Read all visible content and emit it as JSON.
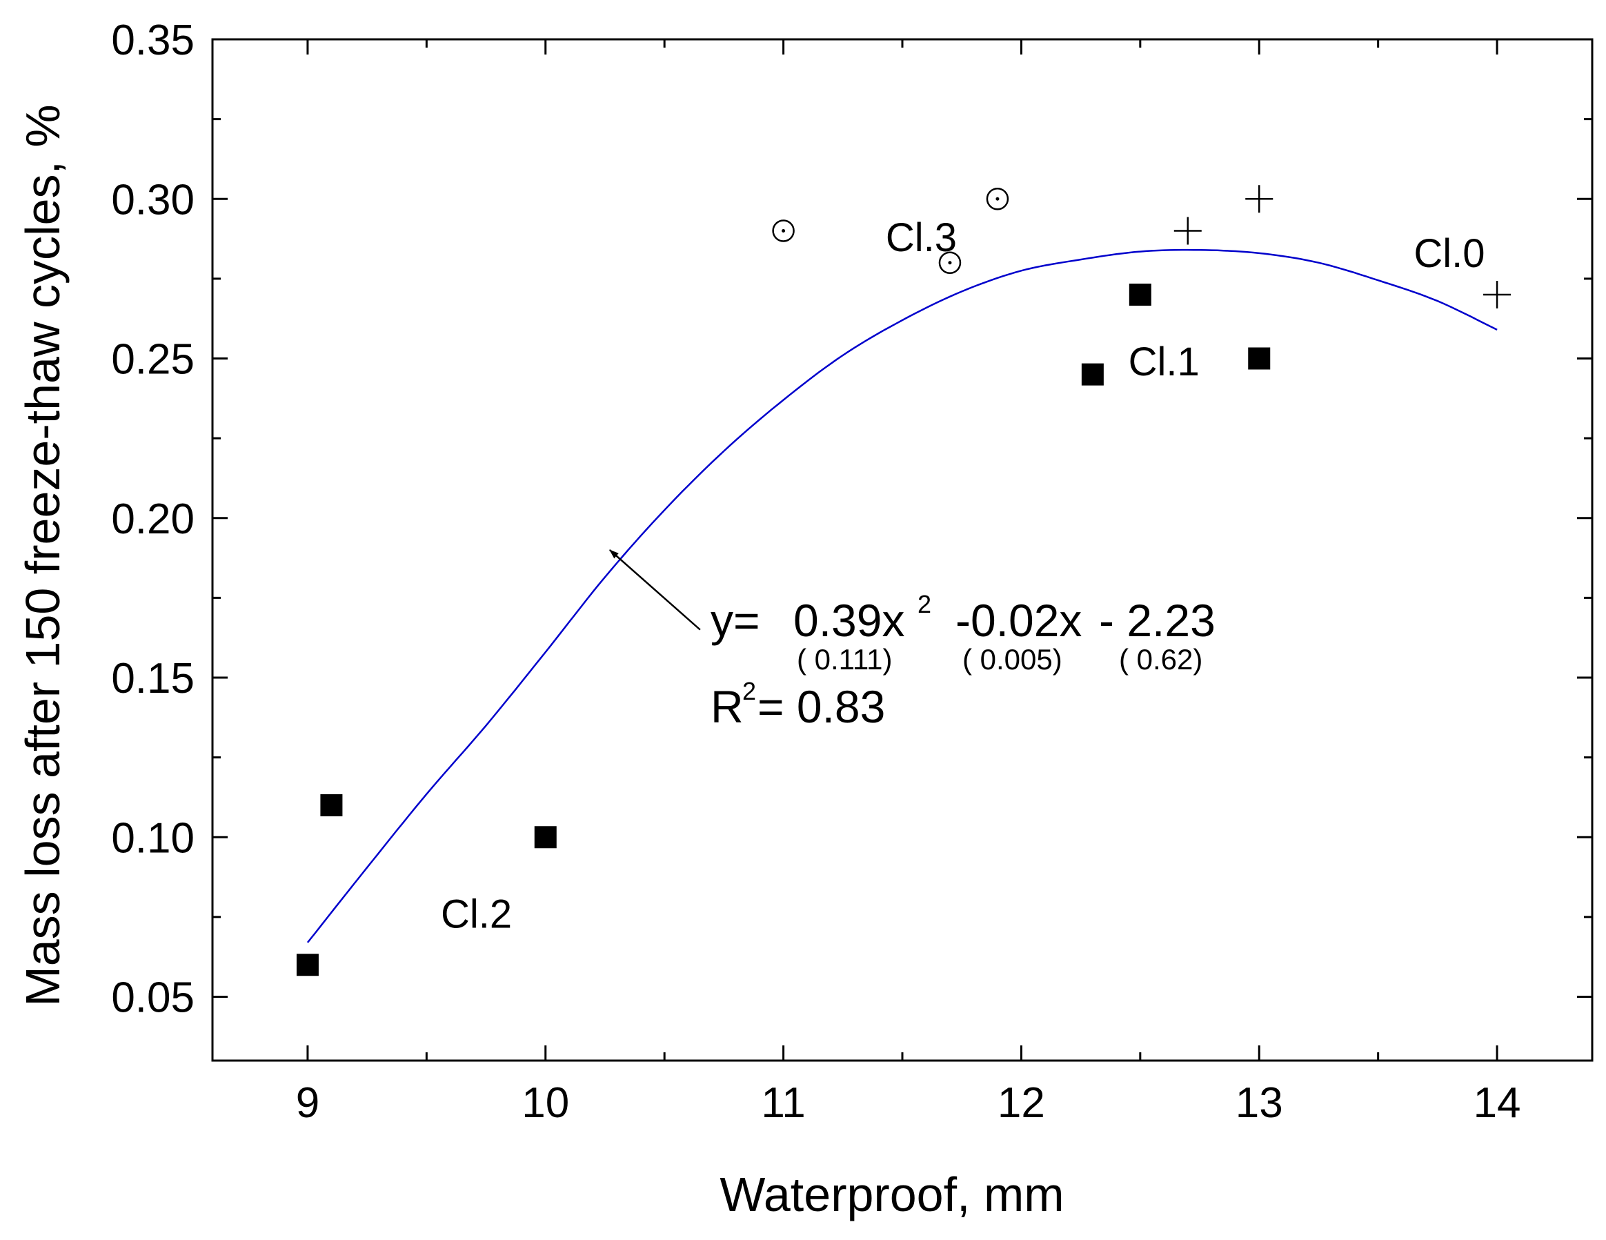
{
  "chart_data": {
    "type": "scatter",
    "title": "",
    "xlabel": "Waterproof, mm",
    "ylabel": "Mass loss after 150 freeze-thaw cycles, %",
    "xlim": [
      8.6,
      14.4
    ],
    "ylim": [
      0.03,
      0.35
    ],
    "xticks": [
      9,
      10,
      11,
      12,
      13,
      14
    ],
    "xtick_labels": [
      "9",
      "10",
      "11",
      "12",
      "13",
      "14"
    ],
    "yticks": [
      0.05,
      0.1,
      0.15,
      0.2,
      0.25,
      0.3,
      0.35
    ],
    "ytick_labels": [
      "0.05",
      "0.10",
      "0.15",
      "0.20",
      "0.25",
      "0.30",
      "0.35"
    ],
    "series": [
      {
        "name": "Cl.1 / Cl.2",
        "marker": "square",
        "points": [
          [
            9.0,
            0.06
          ],
          [
            9.1,
            0.11
          ],
          [
            10.0,
            0.1
          ],
          [
            12.3,
            0.245
          ],
          [
            12.5,
            0.27
          ],
          [
            13.0,
            0.25
          ]
        ]
      },
      {
        "name": "Cl.3",
        "marker": "circle-dot",
        "points": [
          [
            11.0,
            0.29
          ],
          [
            11.7,
            0.28
          ],
          [
            11.9,
            0.3
          ]
        ]
      },
      {
        "name": "Cl.0",
        "marker": "plus",
        "points": [
          [
            12.7,
            0.29
          ],
          [
            13.0,
            0.3
          ],
          [
            14.0,
            0.27
          ]
        ]
      }
    ],
    "fit_curve": {
      "name": "quadratic fit",
      "color": "#0000cc",
      "x": [
        9.0,
        9.25,
        9.5,
        9.75,
        10.0,
        10.25,
        10.5,
        10.75,
        11.0,
        11.25,
        11.5,
        11.75,
        12.0,
        12.25,
        12.5,
        12.75,
        13.0,
        13.25,
        13.5,
        13.75,
        14.0
      ],
      "y": [
        0.067,
        0.0905,
        0.1135,
        0.135,
        0.158,
        0.1815,
        0.2025,
        0.221,
        0.237,
        0.251,
        0.262,
        0.271,
        0.2775,
        0.281,
        0.2835,
        0.284,
        0.283,
        0.28,
        0.2745,
        0.268,
        0.259
      ]
    },
    "annotations": [
      {
        "text": "Cl.3",
        "x": 11.43,
        "y": 0.288
      },
      {
        "text": "Cl.0",
        "x": 13.65,
        "y": 0.283
      },
      {
        "text": "Cl.1",
        "x": 12.45,
        "y": 0.249
      },
      {
        "text": "Cl.2",
        "x": 9.56,
        "y": 0.076
      }
    ],
    "arrow": {
      "from": [
        10.65,
        0.165
      ],
      "to": [
        10.27,
        0.19
      ]
    },
    "equation": {
      "y_label": "y=",
      "term1": "0.39x",
      "term1_sup": "2",
      "term2": "-0.02x",
      "term3": "- 2.23",
      "se1": "( 0.111)",
      "se2": "( 0.005)",
      "se3": "( 0.62)",
      "r2_prefix": "R",
      "r2_sup": "2",
      "r2_rest": "= 0.83"
    }
  }
}
